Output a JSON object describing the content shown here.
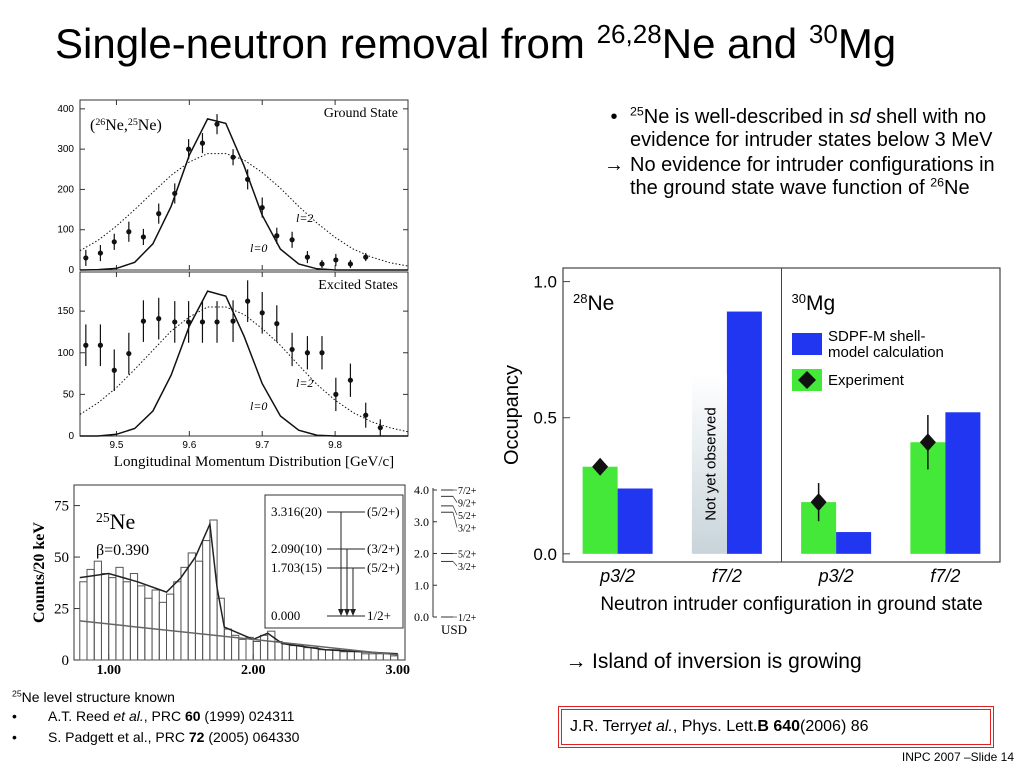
{
  "title": [
    {
      "text": "Single-neutron removal from "
    },
    {
      "text": "26,28",
      "sup": true
    },
    {
      "text": "Ne and "
    },
    {
      "text": "30",
      "sup": true
    },
    {
      "text": "Mg"
    }
  ],
  "bullets": [
    {
      "marker": "•",
      "parts": [
        {
          "text": "25",
          "sup": true
        },
        {
          "text": "Ne is well-described in "
        },
        {
          "text": "sd",
          "italic": true
        },
        {
          "text": " shell with no evidence for intruder states below 3 MeV"
        }
      ]
    },
    {
      "marker": "→",
      "parts": [
        {
          "text": "No evidence for intruder configurations in the ground state wave function of "
        },
        {
          "text": "26",
          "sup": true
        },
        {
          "text": "Ne"
        }
      ]
    }
  ],
  "conclusion": {
    "marker": "→",
    "parts": [
      {
        "text": "Island of inversion is growing"
      }
    ]
  },
  "notes": {
    "heading": [
      {
        "text": "25",
        "sup": true
      },
      {
        "text": "Ne level structure known"
      }
    ],
    "items": [
      {
        "marker": "•",
        "parts": [
          {
            "text": "A.T. Reed "
          },
          {
            "text": "et al.",
            "italic": true
          },
          {
            "text": ", PRC "
          },
          {
            "text": "60",
            "bold": true
          },
          {
            "text": " (1999) 024311"
          }
        ]
      },
      {
        "marker": "•",
        "parts": [
          {
            "text": "S. Padgett et al., PRC "
          },
          {
            "text": "72",
            "bold": true
          },
          {
            "text": " (2005) 064330"
          }
        ]
      }
    ]
  },
  "citation": [
    {
      "text": "J.R. Terry "
    },
    {
      "text": "et al.",
      "italic": true
    },
    {
      "text": ", Phys. Lett. "
    },
    {
      "text": "B 640",
      "bold": true
    },
    {
      "text": " (2006) 86"
    }
  ],
  "footer": "INPC 2007 –Slide 14",
  "chart_data": [
    {
      "type": "momentum",
      "panel_label": "Ground State",
      "annotation": [
        {
          "text": "("
        },
        {
          "text": "26",
          "sup": true
        },
        {
          "text": "Ne,"
        },
        {
          "text": "25",
          "sup": true
        },
        {
          "text": "Ne)"
        }
      ],
      "xlim": [
        9.45,
        9.9
      ],
      "xticks": [
        9.5,
        9.6,
        9.7,
        9.8
      ],
      "xtick_labels": false,
      "ylim": [
        0,
        422
      ],
      "yticks": [
        0,
        100,
        200,
        300,
        400
      ],
      "points": {
        "x": [
          9.458,
          9.478,
          9.497,
          9.517,
          9.537,
          9.558,
          9.58,
          9.599,
          9.618,
          9.638,
          9.66,
          9.68,
          9.7,
          9.72,
          9.741,
          9.762,
          9.782,
          9.801,
          9.821,
          9.842
        ],
        "values": [
          30,
          42,
          70,
          95,
          82,
          140,
          190,
          300,
          315,
          362,
          280,
          225,
          155,
          85,
          75,
          32,
          15,
          25,
          15,
          32
        ],
        "errors": [
          20,
          20,
          20,
          25,
          20,
          25,
          25,
          25,
          25,
          25,
          20,
          25,
          25,
          20,
          20,
          15,
          10,
          15,
          10,
          10
        ]
      },
      "series": [
        {
          "name": "l=0",
          "style": "solid",
          "x": [
            9.45,
            9.475,
            9.5,
            9.525,
            9.55,
            9.575,
            9.6,
            9.625,
            9.65,
            9.675,
            9.7,
            9.725,
            9.75,
            9.775,
            9.8,
            9.825,
            9.85,
            9.875,
            9.9
          ],
          "values": [
            0,
            1,
            4,
            19,
            65,
            158,
            285,
            375,
            364,
            259,
            136,
            52,
            15,
            3,
            0,
            0,
            0,
            0,
            0
          ]
        },
        {
          "name": "l=2",
          "style": "dotted",
          "x": [
            9.45,
            9.475,
            9.5,
            9.525,
            9.55,
            9.575,
            9.6,
            9.625,
            9.65,
            9.675,
            9.7,
            9.725,
            9.75,
            9.775,
            9.8,
            9.825,
            9.85,
            9.875,
            9.9
          ],
          "values": [
            48,
            74,
            109,
            150,
            193,
            235,
            268,
            289,
            289,
            273,
            242,
            203,
            158,
            117,
            81,
            52,
            32,
            18,
            10
          ]
        }
      ]
    },
    {
      "type": "momentum",
      "panel_label": "Excited States",
      "xlabel": "Longitudinal Momentum Distribution [GeV/c]",
      "xlim": [
        9.45,
        9.9
      ],
      "xticks": [
        9.5,
        9.6,
        9.7,
        9.8
      ],
      "ylim": [
        0,
        197
      ],
      "yticks": [
        0,
        50,
        100,
        150
      ],
      "points": {
        "x": [
          9.458,
          9.478,
          9.497,
          9.517,
          9.537,
          9.558,
          9.58,
          9.599,
          9.618,
          9.638,
          9.66,
          9.68,
          9.7,
          9.72,
          9.741,
          9.762,
          9.782,
          9.801,
          9.821,
          9.842,
          9.862
        ],
        "values": [
          109,
          109,
          79,
          99,
          138,
          141,
          137,
          137,
          137,
          137,
          138,
          162,
          148,
          135,
          104,
          100,
          100,
          50,
          67,
          25,
          10
        ],
        "errors": [
          25,
          25,
          25,
          25,
          25,
          25,
          25,
          25,
          25,
          25,
          25,
          25,
          25,
          22,
          20,
          20,
          20,
          20,
          20,
          15,
          10
        ]
      },
      "series": [
        {
          "name": "l=0",
          "style": "solid",
          "x": [
            9.45,
            9.475,
            9.5,
            9.525,
            9.55,
            9.575,
            9.6,
            9.625,
            9.65,
            9.675,
            9.7,
            9.725,
            9.75,
            9.775,
            9.8,
            9.825,
            9.85,
            9.875,
            9.9
          ],
          "values": [
            0,
            0,
            2,
            9,
            30,
            73,
            132,
            174,
            168,
            120,
            63,
            24,
            7,
            1,
            0,
            0,
            0,
            0,
            0
          ]
        },
        {
          "name": "l=2",
          "style": "dotted",
          "x": [
            9.45,
            9.475,
            9.5,
            9.525,
            9.55,
            9.575,
            9.6,
            9.625,
            9.65,
            9.675,
            9.7,
            9.725,
            9.75,
            9.775,
            9.8,
            9.825,
            9.85,
            9.875,
            9.9
          ],
          "values": [
            26,
            40,
            58,
            80,
            103,
            126,
            143,
            155,
            155,
            146,
            129,
            109,
            85,
            62,
            43,
            28,
            17,
            10,
            5
          ]
        }
      ]
    },
    {
      "type": "histogram",
      "title": [
        {
          "text": "25",
          "sup": true
        },
        {
          "text": "Ne"
        }
      ],
      "subtitle": "β=0.390",
      "ylabel": "Counts/20 keV",
      "xlim": [
        0.76,
        3.05
      ],
      "xticks": [
        {
          "value": 1,
          "label": "1.00"
        },
        {
          "value": 2,
          "label": "2.00"
        },
        {
          "value": 3,
          "label": "3.00"
        }
      ],
      "ylim": [
        0,
        85
      ],
      "yticks": [
        0,
        25,
        50,
        75
      ],
      "bins": [
        0.8,
        0.85,
        0.9,
        0.95,
        1.0,
        1.05,
        1.1,
        1.15,
        1.2,
        1.25,
        1.3,
        1.35,
        1.4,
        1.45,
        1.5,
        1.55,
        1.6,
        1.65,
        1.7,
        1.75,
        1.8,
        1.85,
        1.9,
        1.95,
        2.0,
        2.05,
        2.1,
        2.15,
        2.2,
        2.25,
        2.3,
        2.35,
        2.4,
        2.45,
        2.5,
        2.55,
        2.6,
        2.65,
        2.7,
        2.75,
        2.8,
        2.85,
        2.9,
        2.95,
        3.0
      ],
      "counts": [
        38,
        44,
        48,
        42,
        40,
        45,
        38,
        42,
        36,
        30,
        34,
        28,
        32,
        38,
        45,
        52,
        48,
        58,
        68,
        30,
        15,
        12,
        10,
        11,
        9,
        12,
        14,
        9,
        8,
        7,
        7,
        6,
        6,
        5,
        5,
        5,
        4,
        4,
        4,
        3,
        3,
        3,
        3,
        2
      ],
      "lines": [
        {
          "style": "fit",
          "x": [
            0.8,
            1.0,
            1.2,
            1.4,
            1.5,
            1.6,
            1.65,
            1.7,
            1.75,
            1.8,
            2.0,
            2.1,
            2.2,
            2.5,
            3.0
          ],
          "values": [
            40,
            42,
            38,
            33,
            40,
            50,
            58,
            66,
            35,
            16,
            10,
            13,
            8,
            5,
            3
          ]
        },
        {
          "style": "background",
          "x": [
            0.8,
            3.0
          ],
          "values": [
            19,
            2.5
          ]
        }
      ],
      "level_scheme": {
        "levels": [
          {
            "energy": "3.316(20)",
            "spin": "(5/2+)"
          },
          {
            "energy": "2.090(10)",
            "spin": "(3/2+)"
          },
          {
            "energy": "1.703(15)",
            "spin": "(5/2+)"
          },
          {
            "energy": "0.000",
            "spin": "1/2+"
          }
        ]
      },
      "usd": {
        "label": "USD",
        "ylim": [
          0,
          4
        ],
        "yticks": [
          {
            "value": 0,
            "label": "0.0"
          },
          {
            "value": 1,
            "label": "1.0"
          },
          {
            "value": 2,
            "label": "2.0"
          },
          {
            "value": 3,
            "label": "3.0"
          },
          {
            "value": 4,
            "label": "4.0"
          }
        ],
        "levels": [
          {
            "label": "7/2+",
            "value": 4.0
          },
          {
            "label": "9/2+",
            "value": 3.8
          },
          {
            "label": "5/2+",
            "value": 3.5
          },
          {
            "label": "3/2+",
            "value": 3.3
          },
          {
            "label": "5/2+",
            "value": 2.0
          },
          {
            "label": "3/2+",
            "value": 1.75
          },
          {
            "label": "1/2+",
            "value": 0
          }
        ]
      }
    },
    {
      "type": "grouped_bar",
      "ylabel": "Occupancy",
      "xlabel": "Neutron intruder configuration in ground state",
      "ylim": [
        -0.03,
        1.05
      ],
      "yticks": [
        {
          "value": 0,
          "label": "0.0"
        },
        {
          "value": 0.5,
          "label": "0.5"
        },
        {
          "value": 1,
          "label": "1.0"
        }
      ],
      "categories": [
        "p3/2",
        "f7/2",
        "p3/2",
        "f7/2"
      ],
      "groups": [
        {
          "label": [
            {
              "text": "28",
              "sup": true
            },
            {
              "text": "Ne"
            }
          ],
          "size": 2
        },
        {
          "label": [
            {
              "text": "30",
              "sup": true
            },
            {
              "text": "Mg"
            }
          ],
          "size": 2
        }
      ],
      "annotation": "Not yet observed",
      "series": [
        {
          "name": "Experiment",
          "color": "#44e838",
          "values": [
            0.32,
            null,
            0.19,
            0.41
          ],
          "errors": [
            0.03,
            null,
            0.07,
            0.1
          ]
        },
        {
          "name": "SDPF-M shell-model calculation",
          "color": "#2036f0",
          "values": [
            0.24,
            0.89,
            0.08,
            0.52
          ]
        }
      ]
    }
  ]
}
